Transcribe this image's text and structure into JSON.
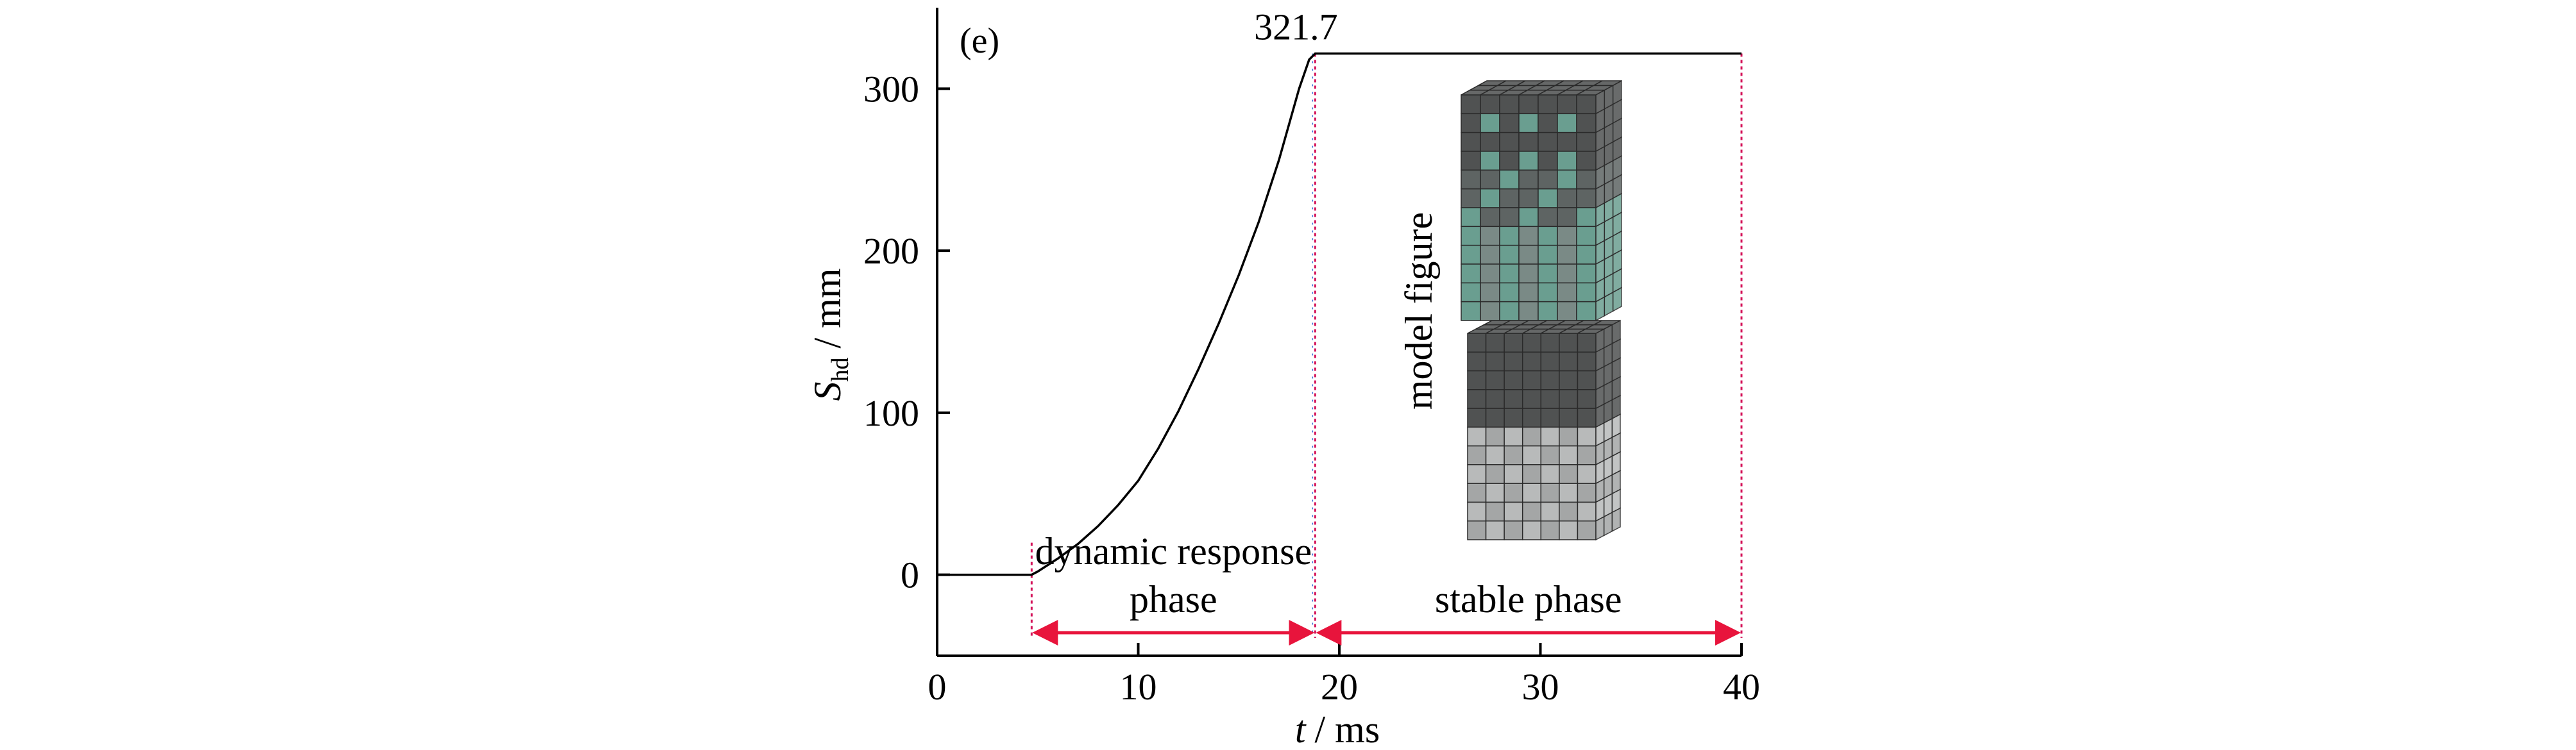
{
  "chart_data": {
    "type": "line",
    "panel_label": "(e)",
    "xlabel": {
      "symbol": "t",
      "unit": "/ ms"
    },
    "ylabel": {
      "symbol": "S",
      "subscript": "hd",
      "unit": "/ mm"
    },
    "xlim": [
      0,
      40
    ],
    "ylim": [
      -50,
      350
    ],
    "xticks": [
      0,
      10,
      20,
      30,
      40
    ],
    "yticks": [
      0,
      100,
      200,
      300
    ],
    "x": [
      0,
      2,
      4,
      4.7,
      5,
      6,
      7,
      8,
      9,
      10,
      11,
      12,
      13,
      14,
      15,
      16,
      17,
      18,
      18.5,
      18.8,
      20,
      25,
      30,
      35,
      40
    ],
    "y": [
      0,
      0,
      0,
      0,
      2,
      10,
      19,
      30,
      43,
      58,
      78,
      101,
      127,
      155,
      185,
      218,
      256,
      300,
      318,
      321.7,
      321.7,
      321.7,
      321.7,
      321.7,
      321.7
    ],
    "peak": {
      "x": 18.8,
      "y": 321.7,
      "label": "321.7"
    },
    "phase_boundaries": [
      4.7,
      18.8,
      40
    ],
    "phases": [
      {
        "line1": "dynamic response",
        "line2": "phase",
        "start": 4.7,
        "end": 18.8
      },
      {
        "line1": "stable phase",
        "line2": "",
        "start": 18.8,
        "end": 40
      }
    ],
    "inset_label": "model figure",
    "colors": {
      "curve": "#000000",
      "arrow": "#e8143c",
      "boundary": "#d4145a",
      "boundary_alt": "#3a6fd8",
      "block_dark": "#505252",
      "block_teal": "#6a9e90",
      "block_light": "#a4a6a6"
    }
  }
}
